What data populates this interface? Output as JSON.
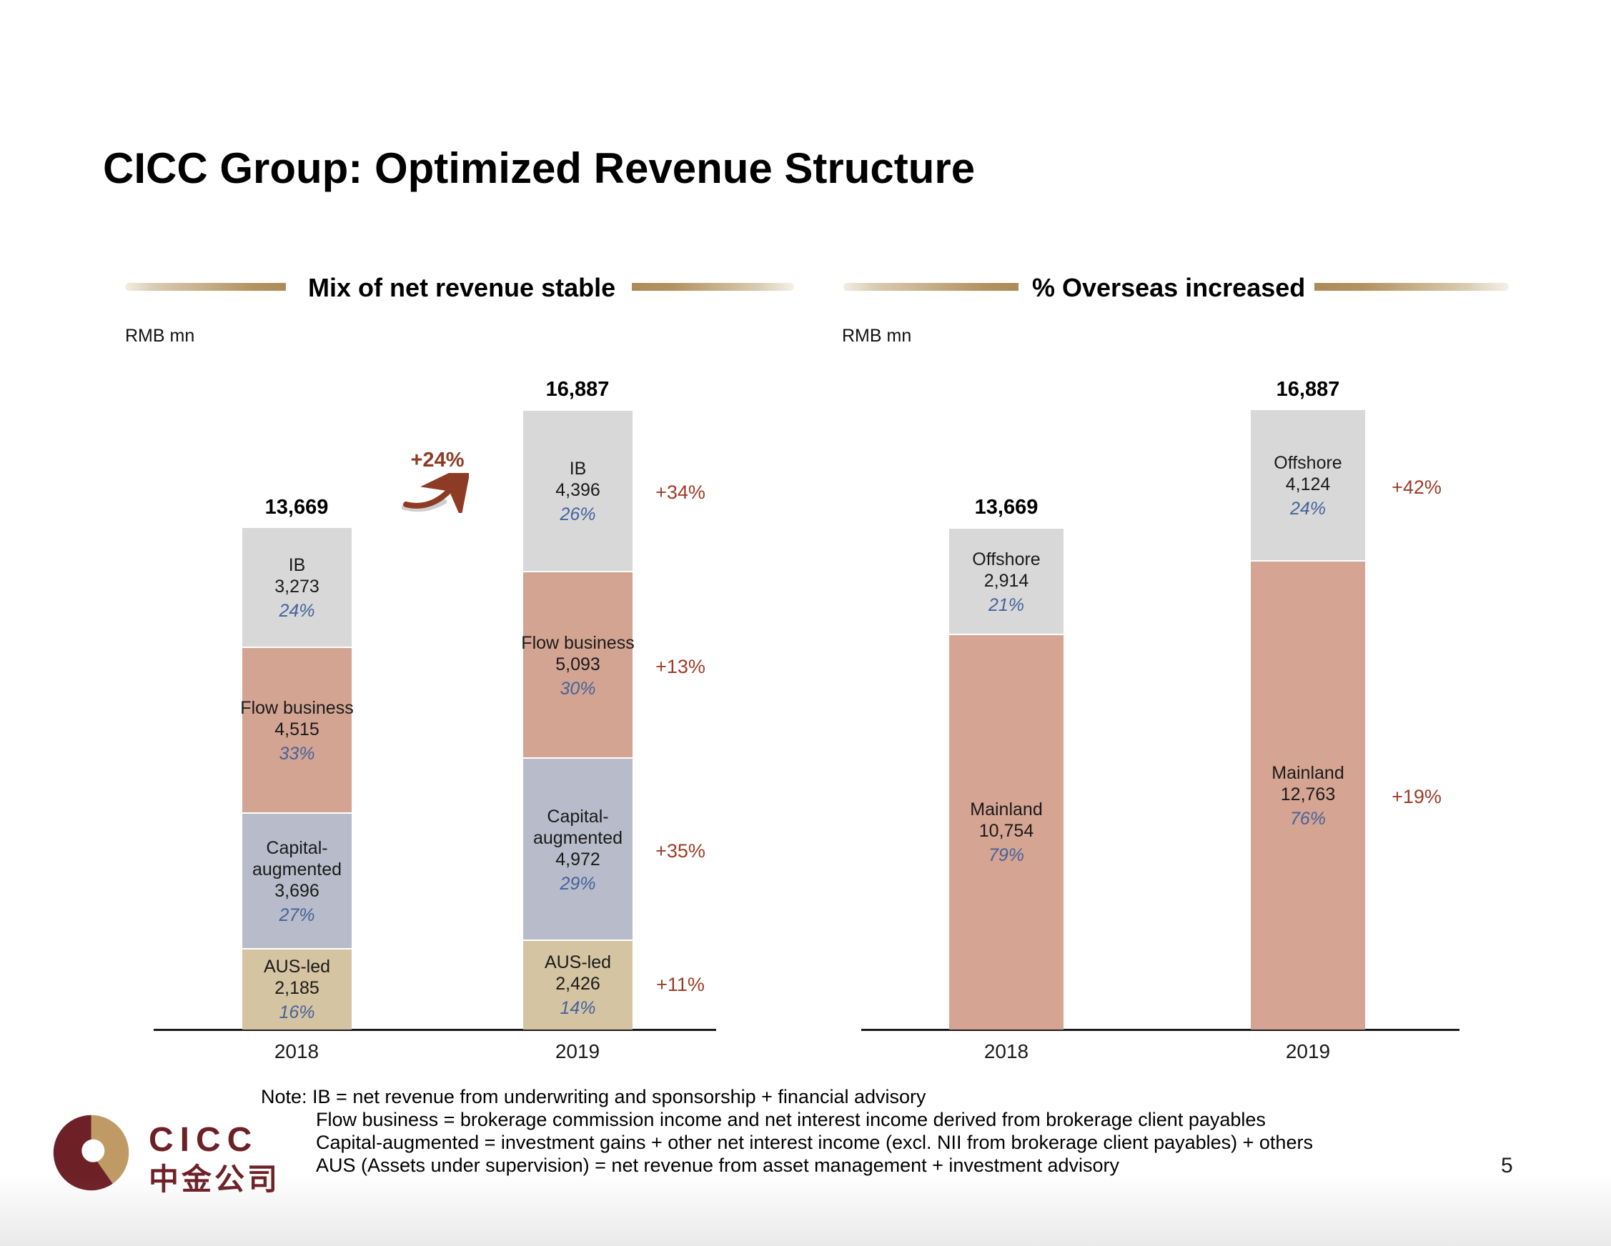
{
  "slide": {
    "title": "CICC Group: Optimized Revenue Structure",
    "page_number": "5"
  },
  "logo": {
    "brand": "CICC",
    "brand_cn": "中金公司"
  },
  "note": {
    "lines": [
      "Note: IB = net revenue from underwriting and sponsorship + financial advisory",
      "Flow business = brokerage commission income and net interest income derived from brokerage client payables",
      "Capital-augmented = investment gains + other net interest income (excl. NII from brokerage client payables) + others",
      "AUS (Assets under supervision) = net revenue from asset management + investment advisory"
    ]
  },
  "colors": {
    "accent_gold": "#b3925f",
    "growth_red": "#8e3b25",
    "pct_blue": "#44639c",
    "logo_maroon": "#6d2127",
    "logo_tan": "#bf9a64"
  },
  "chart_data": [
    {
      "type": "bar",
      "stacked": true,
      "title": "Mix of net revenue stable",
      "unit_label": "RMB mn",
      "categories": [
        "2018",
        "2019"
      ],
      "totals": [
        "13,669",
        "16,887"
      ],
      "total_growth": "+24%",
      "grid": false,
      "legend_position": "none",
      "series": [
        {
          "name": "AUS-led",
          "values": [
            2185,
            2426
          ],
          "labels": [
            "2,185",
            "2,426"
          ],
          "pct": [
            "16%",
            "14%"
          ],
          "growth": "+11%",
          "color": "#d5c4a1"
        },
        {
          "name": "Capital-augmented",
          "values": [
            3696,
            4972
          ],
          "labels": [
            "3,696",
            "4,972"
          ],
          "pct": [
            "27%",
            "29%"
          ],
          "growth": "+35%",
          "color": "#b8bbc9"
        },
        {
          "name": "Flow business",
          "values": [
            4515,
            5093
          ],
          "labels": [
            "4,515",
            "5,093"
          ],
          "pct": [
            "33%",
            "30%"
          ],
          "growth": "+13%",
          "color": "#d3a492"
        },
        {
          "name": "IB",
          "values": [
            3273,
            4396
          ],
          "labels": [
            "3,273",
            "4,396"
          ],
          "pct": [
            "24%",
            "26%"
          ],
          "growth": "+34%",
          "color": "#d8d8d8"
        }
      ]
    },
    {
      "type": "bar",
      "stacked": true,
      "title": "% Overseas increased",
      "unit_label": "RMB mn",
      "categories": [
        "2018",
        "2019"
      ],
      "totals": [
        "13,669",
        "16,887"
      ],
      "grid": false,
      "legend_position": "none",
      "series": [
        {
          "name": "Mainland",
          "values": [
            10754,
            12763
          ],
          "labels": [
            "10,754",
            "12,763"
          ],
          "pct": [
            "79%",
            "76%"
          ],
          "growth": "+19%",
          "color": "#d5a493"
        },
        {
          "name": "Offshore",
          "values": [
            2914,
            4124
          ],
          "labels": [
            "2,914",
            "4,124"
          ],
          "pct": [
            "21%",
            "24%"
          ],
          "growth": "+42%",
          "color": "#d8d8d8"
        }
      ]
    }
  ]
}
